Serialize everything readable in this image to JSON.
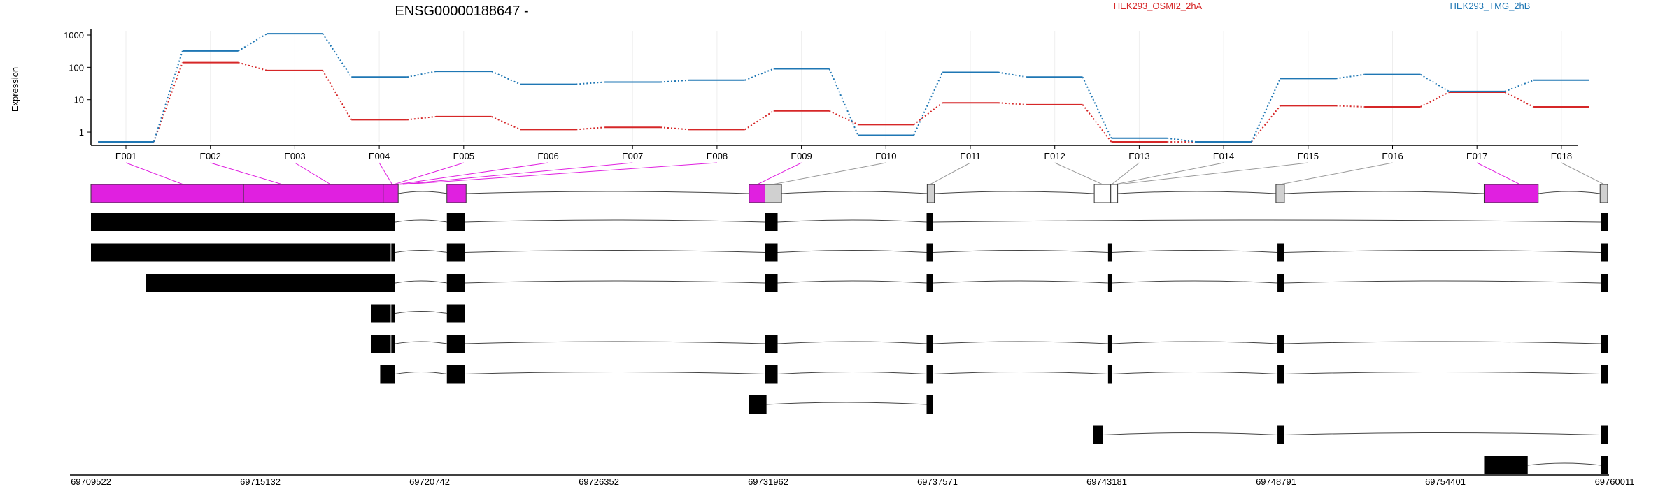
{
  "chart_data": {
    "type": "line",
    "title": "ENSG00000188647 -",
    "ylabel": "Expression",
    "yscale": "log",
    "yticks": [
      "1000",
      "100",
      "10",
      "1"
    ],
    "exon_labels": [
      "E001",
      "E002",
      "E003",
      "E004",
      "E005",
      "E006",
      "E007",
      "E008",
      "E009",
      "E010",
      "E011",
      "E012",
      "E013",
      "E014",
      "E015",
      "E016",
      "E017",
      "E018"
    ],
    "series": [
      {
        "name": "HEK293_OSMI2_2hA",
        "color": "#d62728",
        "values": [
          0.5,
          140,
          80,
          2.4,
          3.0,
          1.2,
          1.4,
          1.2,
          4.5,
          1.7,
          8.0,
          7.0,
          0.5,
          0.5,
          6.5,
          6.0,
          17,
          6.0
        ]
      },
      {
        "name": "HEK293_TMG_2hB",
        "color": "#1f77b4",
        "values": [
          0.5,
          320,
          1100,
          50,
          75,
          30,
          35,
          40,
          90,
          0.8,
          70,
          50,
          0.65,
          0.5,
          45,
          60,
          18,
          40
        ]
      }
    ],
    "genomic_ticks": [
      "69709522",
      "69715132",
      "69720742",
      "69726352",
      "69731962",
      "69737571",
      "69743181",
      "69748791",
      "69754401",
      "69760011"
    ],
    "genomic_range": [
      69709522,
      69760011
    ],
    "highlighted_exons": [
      "E001",
      "E002",
      "E003",
      "E004",
      "E005",
      "E009",
      "E017"
    ],
    "highlight_color": "#e020e0",
    "grid": true,
    "legend_placement": "top"
  }
}
